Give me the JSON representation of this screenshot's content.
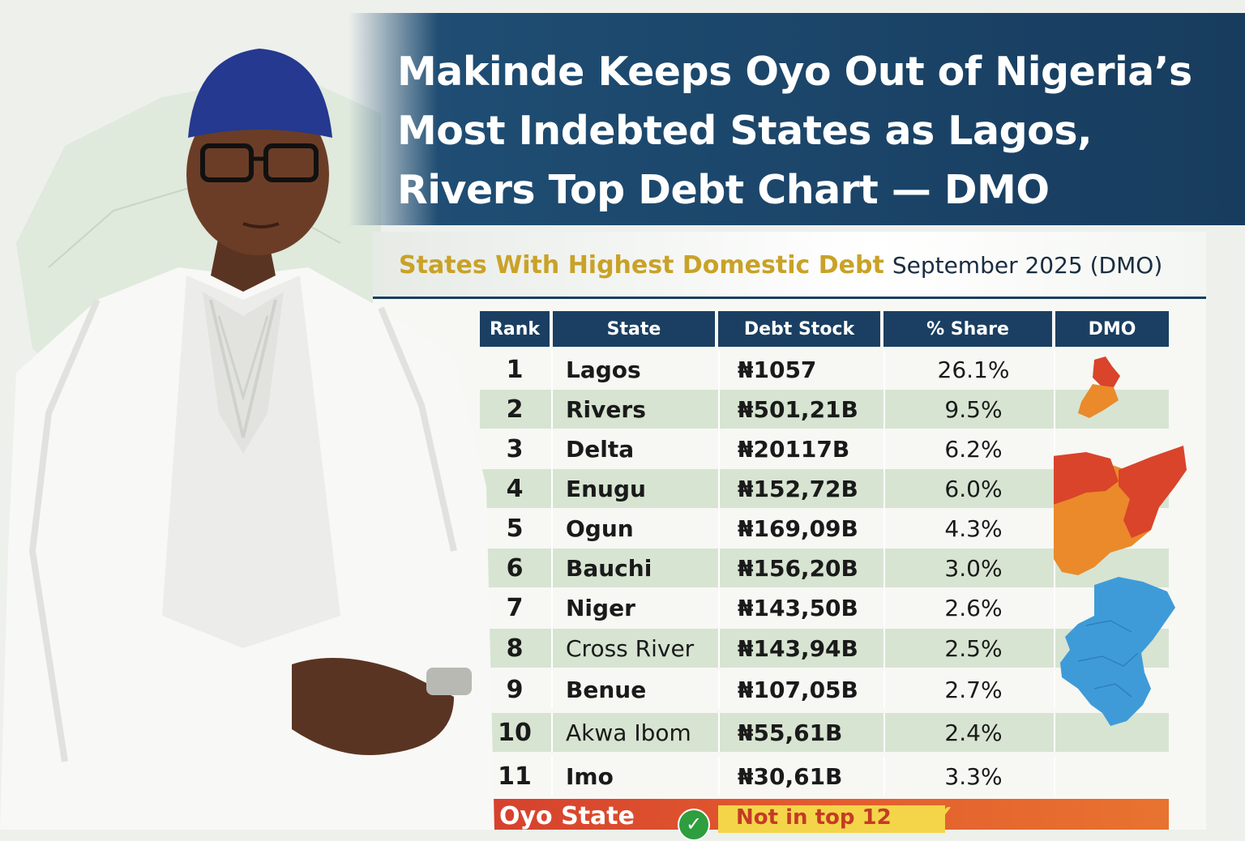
{
  "headline": {
    "lines": [
      "Makinde Keeps Oyo Out of Nigeria’s",
      "Most Indebted States as Lagos,",
      "Rivers Top Debt Chart — DMO"
    ]
  },
  "subtitle": {
    "highlight": "States With Highest Domestic Debt",
    "period": "September 2025 (DMO)"
  },
  "table": {
    "headers": [
      "Rank",
      "State",
      "Debt Stock",
      "% Share",
      "DMO"
    ],
    "rows": [
      {
        "rank": "1",
        "state": "Lagos",
        "debt": "₦1057",
        "share": "26.1%"
      },
      {
        "rank": "2",
        "state": "Rivers",
        "debt": "₦501,21B",
        "share": "9.5%"
      },
      {
        "rank": "3",
        "state": "Delta",
        "debt": "₦20117B",
        "share": "6.2%"
      },
      {
        "rank": "4",
        "state": "Enugu",
        "debt": "₦152,72B",
        "share": "6.0%"
      },
      {
        "rank": "5",
        "state": "Ogun",
        "debt": "₦169,09B",
        "share": "4.3%"
      },
      {
        "rank": "6",
        "state": "Bauchi",
        "debt": "₦156,20B",
        "share": "3.0%"
      },
      {
        "rank": "7",
        "state": "Niger",
        "debt": "₦143,50B",
        "share": "2.6%"
      },
      {
        "rank": "8",
        "state": "Cross River",
        "debt": "₦143,94B",
        "share": "2.5%"
      },
      {
        "rank": "9",
        "state": "Benue",
        "debt": "₦107,05B",
        "share": "2.7%"
      },
      {
        "rank": "10",
        "state": "Akwa Ibom",
        "debt": "₦55,61B",
        "share": "2.4%"
      },
      {
        "rank": "11",
        "state": "Imo",
        "debt": "₦30,61B",
        "share": "3.3%"
      }
    ]
  },
  "oyo": {
    "state": "Oyo State",
    "status": "Not in top 12",
    "check_icon": "check-circle-icon",
    "tick_icon": "checkmark-icon"
  },
  "colors": {
    "banner": "#1f4d73",
    "header": "#1a3f62",
    "highlight": "#c9a227",
    "alt_row": "#d7e4d2",
    "map_red": "#d9442b",
    "map_orange": "#ea8a2a",
    "map_blue": "#3f9bd8",
    "oyo_bar": "#d5402e"
  }
}
